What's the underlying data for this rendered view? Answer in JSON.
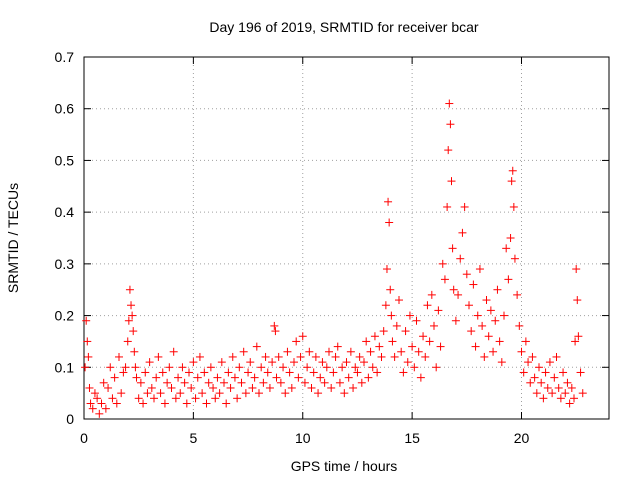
{
  "chart_data": {
    "type": "scatter",
    "title": "Day 196 of 2019, SRMTID for receiver bcar",
    "xlabel": "GPS time / hours",
    "ylabel": "SRMTID / TECUs",
    "xlim": [
      0,
      24
    ],
    "ylim": [
      0,
      0.7
    ],
    "x_ticks": [
      0,
      5,
      10,
      15,
      20
    ],
    "x_tick_labels": [
      "0",
      "5",
      "10",
      "15",
      "20"
    ],
    "y_ticks": [
      0,
      0.1,
      0.2,
      0.3,
      0.4,
      0.5,
      0.6,
      0.7
    ],
    "y_tick_labels": [
      "0",
      "0.1",
      "0.2",
      "0.3",
      "0.4",
      "0.5",
      "0.6",
      "0.7"
    ],
    "grid": true,
    "marker": "plus",
    "series": [
      {
        "name": "SRMTID",
        "color": "#ff0000",
        "x": [
          0.05,
          0.1,
          0.15,
          0.2,
          0.25,
          0.3,
          0.4,
          0.5,
          0.6,
          0.7,
          0.8,
          0.9,
          1.0,
          1.1,
          1.2,
          1.3,
          1.4,
          1.5,
          1.6,
          1.7,
          1.8,
          1.9,
          2.0,
          2.05,
          2.1,
          2.15,
          2.2,
          2.25,
          2.3,
          2.35,
          2.4,
          2.5,
          2.6,
          2.7,
          2.8,
          2.9,
          3.0,
          3.1,
          3.2,
          3.3,
          3.4,
          3.5,
          3.6,
          3.7,
          3.8,
          3.9,
          4.0,
          4.1,
          4.2,
          4.3,
          4.4,
          4.5,
          4.6,
          4.7,
          4.8,
          4.9,
          5.0,
          5.1,
          5.2,
          5.3,
          5.4,
          5.5,
          5.6,
          5.7,
          5.8,
          5.9,
          6.0,
          6.1,
          6.2,
          6.3,
          6.4,
          6.5,
          6.6,
          6.7,
          6.8,
          6.9,
          7.0,
          7.1,
          7.2,
          7.3,
          7.4,
          7.5,
          7.6,
          7.7,
          7.8,
          7.9,
          8.0,
          8.1,
          8.2,
          8.3,
          8.4,
          8.5,
          8.6,
          8.7,
          8.75,
          8.8,
          8.9,
          9.0,
          9.1,
          9.2,
          9.3,
          9.4,
          9.5,
          9.6,
          9.7,
          9.8,
          9.9,
          10.0,
          10.1,
          10.2,
          10.3,
          10.4,
          10.5,
          10.6,
          10.7,
          10.8,
          10.9,
          11.0,
          11.1,
          11.2,
          11.3,
          11.4,
          11.5,
          11.6,
          11.7,
          11.8,
          11.9,
          12.0,
          12.1,
          12.2,
          12.3,
          12.4,
          12.5,
          12.6,
          12.7,
          12.8,
          12.9,
          13.0,
          13.1,
          13.2,
          13.3,
          13.4,
          13.5,
          13.6,
          13.7,
          13.8,
          13.85,
          13.9,
          13.95,
          14.0,
          14.05,
          14.1,
          14.2,
          14.3,
          14.4,
          14.5,
          14.6,
          14.7,
          14.8,
          14.9,
          15.0,
          15.1,
          15.2,
          15.3,
          15.4,
          15.5,
          15.6,
          15.7,
          15.8,
          15.9,
          16.0,
          16.1,
          16.2,
          16.3,
          16.4,
          16.5,
          16.6,
          16.65,
          16.7,
          16.75,
          16.8,
          16.85,
          16.9,
          17.0,
          17.1,
          17.2,
          17.3,
          17.4,
          17.5,
          17.6,
          17.7,
          17.8,
          17.9,
          18.0,
          18.1,
          18.2,
          18.3,
          18.4,
          18.5,
          18.6,
          18.7,
          18.8,
          18.9,
          19.0,
          19.1,
          19.2,
          19.3,
          19.4,
          19.5,
          19.55,
          19.6,
          19.65,
          19.7,
          19.8,
          19.9,
          20.0,
          20.1,
          20.2,
          20.3,
          20.4,
          20.5,
          20.6,
          20.7,
          20.8,
          20.9,
          21.0,
          21.1,
          21.2,
          21.3,
          21.4,
          21.5,
          21.6,
          21.7,
          21.8,
          21.9,
          22.0,
          22.1,
          22.2,
          22.3,
          22.4,
          22.45,
          22.5,
          22.55,
          22.6,
          22.7,
          22.8
        ],
        "y": [
          0.1,
          0.19,
          0.15,
          0.12,
          0.06,
          0.03,
          0.02,
          0.05,
          0.04,
          0.01,
          0.03,
          0.07,
          0.02,
          0.06,
          0.1,
          0.04,
          0.08,
          0.03,
          0.12,
          0.05,
          0.09,
          0.1,
          0.15,
          0.19,
          0.25,
          0.22,
          0.2,
          0.17,
          0.13,
          0.1,
          0.08,
          0.04,
          0.07,
          0.03,
          0.09,
          0.05,
          0.11,
          0.06,
          0.04,
          0.08,
          0.12,
          0.05,
          0.09,
          0.03,
          0.07,
          0.1,
          0.06,
          0.13,
          0.04,
          0.08,
          0.05,
          0.1,
          0.07,
          0.03,
          0.09,
          0.06,
          0.11,
          0.04,
          0.08,
          0.12,
          0.05,
          0.09,
          0.03,
          0.07,
          0.1,
          0.06,
          0.04,
          0.08,
          0.05,
          0.11,
          0.07,
          0.03,
          0.09,
          0.06,
          0.12,
          0.08,
          0.04,
          0.1,
          0.07,
          0.13,
          0.05,
          0.09,
          0.11,
          0.06,
          0.08,
          0.14,
          0.05,
          0.1,
          0.07,
          0.12,
          0.09,
          0.06,
          0.11,
          0.18,
          0.17,
          0.08,
          0.12,
          0.07,
          0.1,
          0.05,
          0.13,
          0.09,
          0.06,
          0.11,
          0.15,
          0.08,
          0.12,
          0.16,
          0.07,
          0.1,
          0.13,
          0.06,
          0.09,
          0.12,
          0.05,
          0.08,
          0.11,
          0.07,
          0.1,
          0.13,
          0.06,
          0.09,
          0.12,
          0.14,
          0.07,
          0.1,
          0.05,
          0.11,
          0.08,
          0.13,
          0.06,
          0.1,
          0.09,
          0.12,
          0.07,
          0.11,
          0.15,
          0.08,
          0.13,
          0.1,
          0.16,
          0.09,
          0.14,
          0.12,
          0.17,
          0.22,
          0.29,
          0.42,
          0.38,
          0.25,
          0.2,
          0.15,
          0.12,
          0.18,
          0.23,
          0.13,
          0.09,
          0.17,
          0.11,
          0.2,
          0.14,
          0.1,
          0.19,
          0.13,
          0.08,
          0.16,
          0.12,
          0.22,
          0.15,
          0.24,
          0.18,
          0.1,
          0.21,
          0.14,
          0.3,
          0.27,
          0.41,
          0.52,
          0.61,
          0.57,
          0.46,
          0.33,
          0.25,
          0.19,
          0.24,
          0.31,
          0.36,
          0.41,
          0.28,
          0.22,
          0.17,
          0.26,
          0.14,
          0.2,
          0.29,
          0.18,
          0.12,
          0.23,
          0.16,
          0.21,
          0.13,
          0.19,
          0.25,
          0.15,
          0.11,
          0.2,
          0.33,
          0.27,
          0.35,
          0.46,
          0.48,
          0.41,
          0.31,
          0.24,
          0.18,
          0.13,
          0.09,
          0.15,
          0.11,
          0.07,
          0.12,
          0.08,
          0.05,
          0.1,
          0.07,
          0.04,
          0.09,
          0.06,
          0.11,
          0.05,
          0.08,
          0.12,
          0.06,
          0.04,
          0.09,
          0.05,
          0.07,
          0.03,
          0.06,
          0.04,
          0.15,
          0.29,
          0.23,
          0.16,
          0.09,
          0.05
        ]
      }
    ]
  }
}
